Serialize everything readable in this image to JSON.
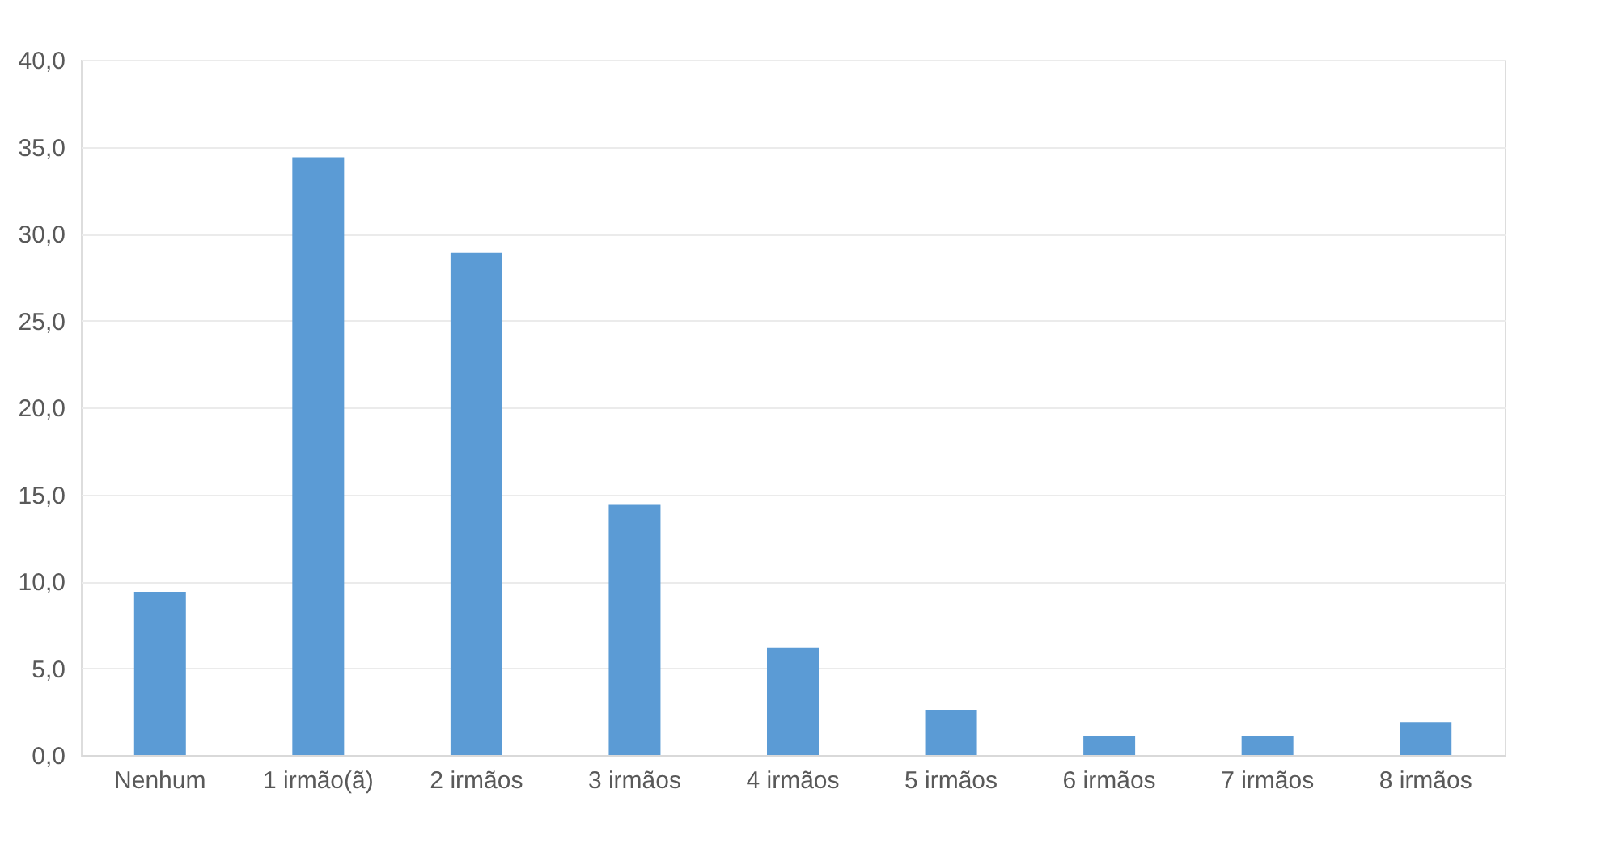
{
  "chart_data": {
    "type": "bar",
    "categories": [
      "Nenhum",
      "1 irmão(ã)",
      "2 irmãos",
      "3 irmãos",
      "4 irmãos",
      "5 irmãos",
      "6 irmãos",
      "7 irmãos",
      "8 irmãos"
    ],
    "series": [
      {
        "color": "#5b9bd5",
        "values": [
          9.4,
          34.4,
          28.9,
          14.4,
          6.2,
          2.6,
          1.1,
          1.1,
          1.9
        ]
      }
    ],
    "ylim": [
      0,
      40
    ],
    "yticks": [
      {
        "value": 0,
        "label": "0,0"
      },
      {
        "value": 5,
        "label": "5,0"
      },
      {
        "value": 10,
        "label": "10,0"
      },
      {
        "value": 15,
        "label": "15,0"
      },
      {
        "value": 20,
        "label": "20,0"
      },
      {
        "value": 25,
        "label": "25,0"
      },
      {
        "value": 30,
        "label": "30,0"
      },
      {
        "value": 35,
        "label": "35,0"
      },
      {
        "value": 40,
        "label": "40,0"
      }
    ],
    "grid": "y",
    "legend": false
  }
}
